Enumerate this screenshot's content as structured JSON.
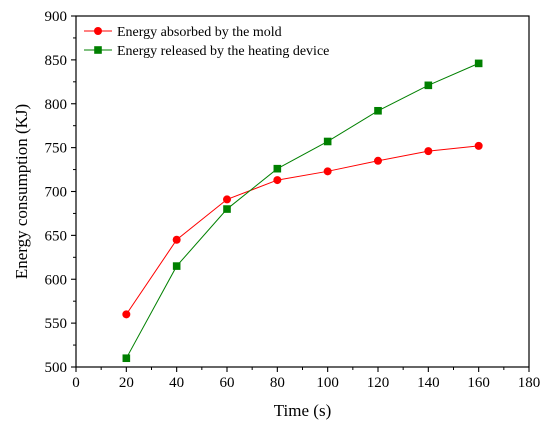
{
  "chart_data": {
    "type": "line",
    "xlabel": "Time (s)",
    "ylabel": "Energy consumption (KJ)",
    "xlim": [
      0,
      180
    ],
    "ylim": [
      500,
      900
    ],
    "xticks": [
      0,
      20,
      40,
      60,
      80,
      100,
      120,
      140,
      160,
      180
    ],
    "yticks": [
      500,
      550,
      600,
      650,
      700,
      750,
      800,
      850,
      900
    ],
    "grid": false,
    "legend_position": "top-left",
    "x": [
      20,
      40,
      60,
      80,
      100,
      120,
      140,
      160
    ],
    "series": [
      {
        "name": "Energy absorbed by the mold",
        "color": "#ff0000",
        "marker": "circle",
        "values": [
          560,
          645,
          691,
          713,
          723,
          735,
          746,
          752
        ]
      },
      {
        "name": "Energy released by the heating device",
        "color": "#008000",
        "marker": "square",
        "values": [
          510,
          615,
          680,
          726,
          757,
          792,
          821,
          846
        ]
      }
    ]
  }
}
